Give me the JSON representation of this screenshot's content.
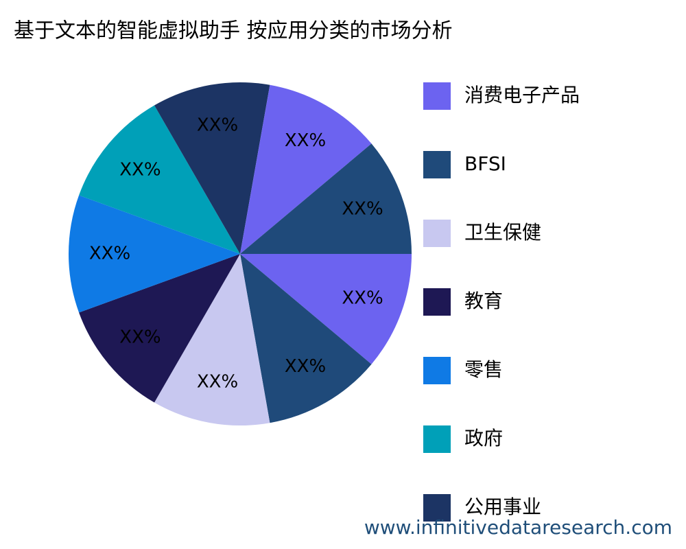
{
  "chart_data": {
    "type": "pie",
    "title": "基于文本的智能虚拟助手 按应用分类的市场分析",
    "categories": [
      "消费电子产品",
      "BFSI",
      "卫生保健",
      "教育",
      "零售",
      "政府",
      "公用事业",
      null,
      null
    ],
    "values": [
      11.1,
      11.1,
      11.1,
      11.1,
      11.1,
      11.1,
      11.1,
      11.1,
      11.1
    ],
    "value_labels": [
      "XX%",
      "XX%",
      "XX%",
      "XX%",
      "XX%",
      "XX%",
      "XX%",
      "XX%",
      "XX%"
    ],
    "colors": [
      "#6c63f0",
      "#1f4a7a",
      "#c8c8f0",
      "#1e1854",
      "#0f7ae5",
      "#00a0b8",
      "#1c3464",
      "#6c63f0",
      "#1f4a7a"
    ],
    "legend": "right"
  },
  "watermark": "www.infinitivedataresearch.com"
}
